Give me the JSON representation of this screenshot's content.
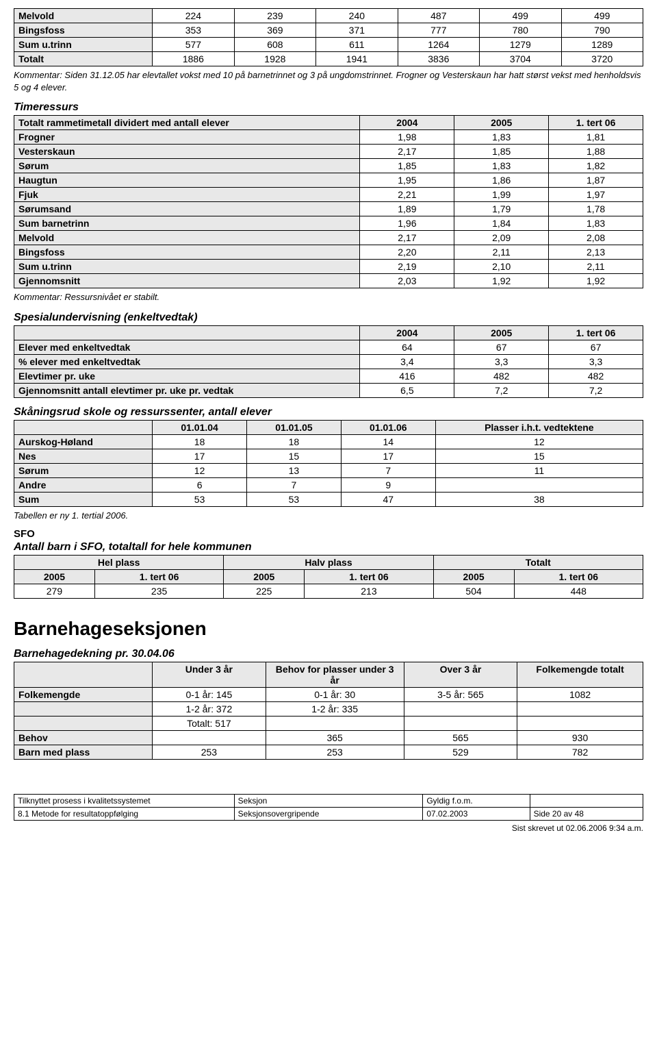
{
  "table1": {
    "rows": [
      {
        "label": "Melvold",
        "v": [
          "224",
          "239",
          "240",
          "487",
          "499",
          "499"
        ]
      },
      {
        "label": "Bingsfoss",
        "v": [
          "353",
          "369",
          "371",
          "777",
          "780",
          "790"
        ]
      },
      {
        "label": "Sum u.trinn",
        "v": [
          "577",
          "608",
          "611",
          "1264",
          "1279",
          "1289"
        ]
      },
      {
        "label": "Totalt",
        "v": [
          "1886",
          "1928",
          "1941",
          "3836",
          "3704",
          "3720"
        ]
      }
    ],
    "comment": "Kommentar: Siden 31.12.05 har elevtallet vokst med 10 på barnetrinnet og 3 på ungdomstrinnet. Frogner og Vesterskaun har hatt størst vekst med henholdsvis 5 og 4 elever."
  },
  "timeressurs": {
    "title": "Timeressurs",
    "header": [
      "Totalt rammetimetall dividert med antall elever",
      "2004",
      "2005",
      "1. tert 06"
    ],
    "rows": [
      {
        "label": "Frogner",
        "v": [
          "1,98",
          "1,83",
          "1,81"
        ]
      },
      {
        "label": "Vesterskaun",
        "v": [
          "2,17",
          "1,85",
          "1,88"
        ]
      },
      {
        "label": "Sørum",
        "v": [
          "1,85",
          "1,83",
          "1,82"
        ]
      },
      {
        "label": "Haugtun",
        "v": [
          "1,95",
          "1,86",
          "1,87"
        ]
      },
      {
        "label": "Fjuk",
        "v": [
          "2,21",
          "1,99",
          "1,97"
        ]
      },
      {
        "label": "Sørumsand",
        "v": [
          "1,89",
          "1,79",
          "1,78"
        ]
      },
      {
        "label": "Sum barnetrinn",
        "v": [
          "1,96",
          "1,84",
          "1,83"
        ]
      },
      {
        "label": "Melvold",
        "v": [
          "2,17",
          "2,09",
          "2,08"
        ]
      },
      {
        "label": "Bingsfoss",
        "v": [
          "2,20",
          "2,11",
          "2,13"
        ]
      },
      {
        "label": "Sum u.trinn",
        "v": [
          "2,19",
          "2,10",
          "2,11"
        ]
      },
      {
        "label": "Gjennomsnitt",
        "v": [
          "2,03",
          "1,92",
          "1,92"
        ]
      }
    ],
    "comment": "Kommentar: Ressursnivået er stabilt."
  },
  "spesial": {
    "title": "Spesialundervisning (enkeltvedtak)",
    "header": [
      "",
      "2004",
      "2005",
      "1. tert 06"
    ],
    "rows": [
      {
        "label": "Elever med enkeltvedtak",
        "v": [
          "64",
          "67",
          "67"
        ]
      },
      {
        "label": "% elever med enkeltvedtak",
        "v": [
          "3,4",
          "3,3",
          "3,3"
        ]
      },
      {
        "label": "Elevtimer pr. uke",
        "v": [
          "416",
          "482",
          "482"
        ]
      },
      {
        "label": "Gjennomsnitt antall elevtimer pr. uke pr. vedtak",
        "v": [
          "6,5",
          "7,2",
          "7,2"
        ]
      }
    ]
  },
  "skan": {
    "title": "Skåningsrud skole og ressurssenter, antall elever",
    "header": [
      "",
      "01.01.04",
      "01.01.05",
      "01.01.06",
      "Plasser i.h.t. vedtektene"
    ],
    "rows": [
      {
        "label": "Aurskog-Høland",
        "v": [
          "18",
          "18",
          "14",
          "12"
        ]
      },
      {
        "label": "Nes",
        "v": [
          "17",
          "15",
          "17",
          "15"
        ]
      },
      {
        "label": "Sørum",
        "v": [
          "12",
          "13",
          "7",
          "11"
        ]
      },
      {
        "label": "Andre",
        "v": [
          "6",
          "7",
          "9",
          ""
        ]
      },
      {
        "label": "Sum",
        "v": [
          "53",
          "53",
          "47",
          "38"
        ]
      }
    ],
    "comment": "Tabellen er ny 1. tertial 2006."
  },
  "sfo": {
    "heading": "SFO",
    "title": "Antall barn i SFO, totaltall for hele kommunen",
    "topheader": [
      "Hel plass",
      "Halv plass",
      "Totalt"
    ],
    "subheader": [
      "2005",
      "1. tert 06",
      "2005",
      "1. tert 06",
      "2005",
      "1. tert 06"
    ],
    "row": [
      "279",
      "235",
      "225",
      "213",
      "504",
      "448"
    ]
  },
  "barnehage": {
    "h1": "Barnehageseksjonen",
    "title": "Barnehagedekning pr. 30.04.06",
    "header": [
      "",
      "Under 3 år",
      "Behov for plasser under 3 år",
      "Over 3 år",
      "Folkemengde totalt"
    ],
    "rows": [
      [
        "Folkemengde",
        "0-1 år: 145",
        "0-1 år: 30",
        "3-5 år: 565",
        "1082"
      ],
      [
        "",
        "1-2 år: 372",
        "1-2 år: 335",
        "",
        ""
      ],
      [
        "",
        "Totalt: 517",
        "",
        "",
        ""
      ],
      [
        "Behov",
        "",
        "365",
        "565",
        "930"
      ],
      [
        "Barn med plass",
        "253",
        "253",
        "529",
        "782"
      ]
    ]
  },
  "footer": {
    "r1": [
      "Tilknyttet prosess i kvalitetssystemet",
      "Seksjon",
      "Gyldig f.o.m.",
      ""
    ],
    "r2": [
      "8.1 Metode for resultatoppfølging",
      "Seksjonsovergripende",
      "07.02.2003",
      "Side 20 av 48"
    ],
    "ts": "Sist skrevet ut 02.06.2006 9:34 a.m."
  }
}
